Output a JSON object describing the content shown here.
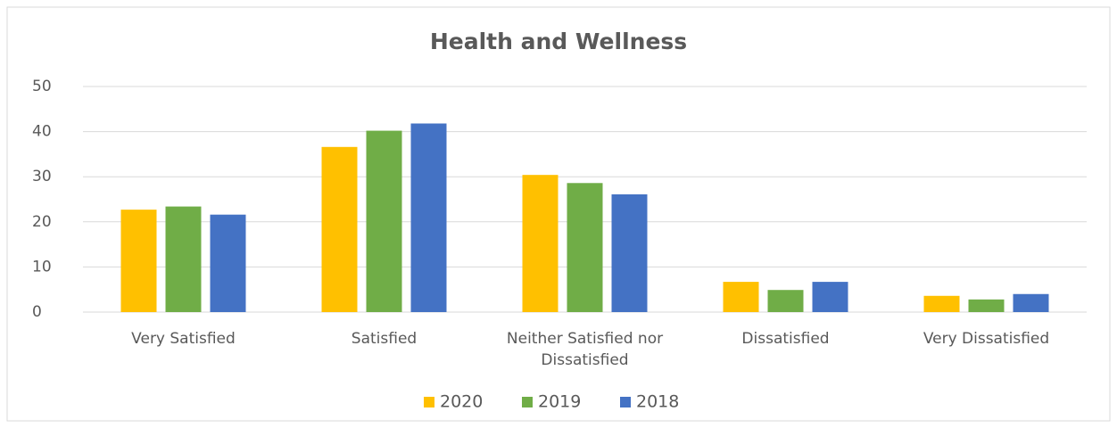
{
  "chart_data": {
    "type": "bar",
    "title": "Health and Wellness",
    "categories": [
      "Very Satisfied",
      "Satisfied",
      "Neither Satisfied nor Dissatisfied",
      "Dissatisfied",
      "Very Dissatisfied"
    ],
    "series": [
      {
        "name": "2020",
        "color": "#FFC000",
        "values": [
          22.7,
          36.6,
          30.4,
          6.7,
          3.6
        ]
      },
      {
        "name": "2019",
        "color": "#70AD47",
        "values": [
          23.4,
          40.2,
          28.6,
          4.9,
          2.8
        ]
      },
      {
        "name": "2018",
        "color": "#4472C4",
        "values": [
          21.6,
          41.8,
          26.1,
          6.7,
          4.0
        ]
      }
    ],
    "ylim": [
      0,
      50
    ],
    "yticks": [
      0,
      10,
      20,
      30,
      40,
      50
    ],
    "grid": true,
    "legend": "bottom"
  }
}
